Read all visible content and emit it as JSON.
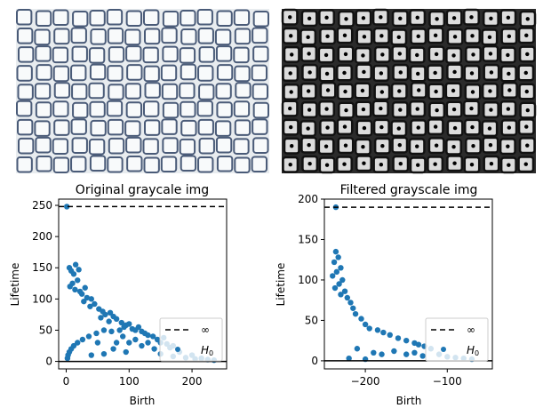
{
  "figure": {
    "images": [
      {
        "name": "original-tissue-image",
        "dots": false
      },
      {
        "name": "filtered-tissue-image",
        "dots": true
      }
    ]
  },
  "chart_data": [
    {
      "type": "scatter",
      "title": "Original graycale img",
      "xlabel": "Birth",
      "ylabel": "Lifetime",
      "xlim": [
        -12,
        255
      ],
      "ylim": [
        -12,
        260
      ],
      "xticks": [
        0,
        100,
        200
      ],
      "yticks": [
        0,
        50,
        100,
        150,
        200,
        250
      ],
      "infinity_line": 248,
      "zero_line": 0,
      "series_color": "#1f77b4",
      "legend": {
        "position": "lower-right",
        "entries": [
          "∞",
          "H",
          "0"
        ]
      },
      "series": [
        {
          "name": "H0",
          "points": [
            [
              1,
              248
            ],
            [
              5,
              150
            ],
            [
              8,
              145
            ],
            [
              12,
              140
            ],
            [
              15,
              155
            ],
            [
              18,
              130
            ],
            [
              20,
              147
            ],
            [
              10,
              125
            ],
            [
              6,
              120
            ],
            [
              14,
              115
            ],
            [
              22,
              112
            ],
            [
              25,
              108
            ],
            [
              30,
              118
            ],
            [
              33,
              102
            ],
            [
              28,
              96
            ],
            [
              40,
              100
            ],
            [
              45,
              92
            ],
            [
              38,
              88
            ],
            [
              52,
              84
            ],
            [
              58,
              80
            ],
            [
              62,
              75
            ],
            [
              55,
              70
            ],
            [
              70,
              78
            ],
            [
              75,
              72
            ],
            [
              80,
              68
            ],
            [
              68,
              64
            ],
            [
              88,
              62
            ],
            [
              95,
              58
            ],
            [
              100,
              60
            ],
            [
              92,
              55
            ],
            [
              105,
              52
            ],
            [
              110,
              50
            ],
            [
              115,
              55
            ],
            [
              85,
              50
            ],
            [
              120,
              48
            ],
            [
              125,
              45
            ],
            [
              130,
              42
            ],
            [
              138,
              40
            ],
            [
              145,
              35
            ],
            [
              150,
              30
            ],
            [
              155,
              38
            ],
            [
              160,
              28
            ],
            [
              165,
              22
            ],
            [
              170,
              25
            ],
            [
              60,
              50
            ],
            [
              72,
              48
            ],
            [
              48,
              45
            ],
            [
              36,
              40
            ],
            [
              26,
              35
            ],
            [
              18,
              30
            ],
            [
              12,
              25
            ],
            [
              8,
              20
            ],
            [
              5,
              15
            ],
            [
              3,
              10
            ],
            [
              2,
              5
            ],
            [
              50,
              30
            ],
            [
              80,
              30
            ],
            [
              100,
              30
            ],
            [
              120,
              25
            ],
            [
              140,
              20
            ],
            [
              180,
              15
            ],
            [
              200,
              10
            ],
            [
              215,
              5
            ],
            [
              225,
              3
            ],
            [
              235,
              2
            ],
            [
              90,
              40
            ],
            [
              110,
              35
            ],
            [
              130,
              30
            ],
            [
              75,
              20
            ],
            [
              95,
              15
            ],
            [
              60,
              12
            ],
            [
              40,
              10
            ],
            [
              150,
              12
            ],
            [
              170,
              8
            ],
            [
              190,
              6
            ],
            [
              205,
              4
            ]
          ]
        }
      ]
    },
    {
      "type": "scatter",
      "title": "Filtered grayscale img",
      "xlabel": "Birth",
      "ylabel": "Lifetime",
      "xlim": [
        -250,
        -45
      ],
      "ylim": [
        -10,
        200
      ],
      "xticks": [
        -200,
        -100
      ],
      "yticks": [
        0,
        50,
        100,
        150,
        200
      ],
      "infinity_line": 190,
      "zero_line": 0,
      "series_color": "#1f77b4",
      "legend": {
        "position": "lower-right",
        "entries": [
          "∞",
          "H",
          "0"
        ]
      },
      "series": [
        {
          "name": "H0",
          "points": [
            [
              -236,
              190
            ],
            [
              -236,
              135
            ],
            [
              -233,
              128
            ],
            [
              -238,
              122
            ],
            [
              -230,
              115
            ],
            [
              -235,
              110
            ],
            [
              -240,
              105
            ],
            [
              -228,
              100
            ],
            [
              -232,
              95
            ],
            [
              -237,
              90
            ],
            [
              -225,
              86
            ],
            [
              -230,
              82
            ],
            [
              -222,
              78
            ],
            [
              -218,
              72
            ],
            [
              -215,
              65
            ],
            [
              -212,
              58
            ],
            [
              -205,
              52
            ],
            [
              -200,
              45
            ],
            [
              -195,
              40
            ],
            [
              -185,
              38
            ],
            [
              -178,
              35
            ],
            [
              -170,
              32
            ],
            [
              -160,
              28
            ],
            [
              -150,
              25
            ],
            [
              -140,
              22
            ],
            [
              -135,
              20
            ],
            [
              -128,
              18
            ],
            [
              -120,
              15
            ],
            [
              -210,
              15
            ],
            [
              -190,
              10
            ],
            [
              -180,
              8
            ],
            [
              -165,
              12
            ],
            [
              -150,
              8
            ],
            [
              -140,
              10
            ],
            [
              -130,
              6
            ],
            [
              -110,
              8
            ],
            [
              -100,
              5
            ],
            [
              -90,
              4
            ],
            [
              -80,
              3
            ],
            [
              -70,
              2
            ],
            [
              -220,
              3
            ],
            [
              -200,
              2
            ]
          ]
        }
      ]
    }
  ]
}
